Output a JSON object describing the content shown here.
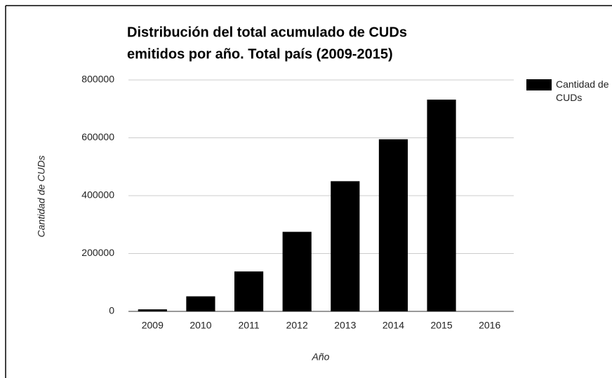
{
  "chart_data": {
    "type": "bar",
    "title": [
      "Distribución del total acumulado de CUDs",
      "emitidos por año. Total país (2009-2015)"
    ],
    "x_label": "Año",
    "y_label": "Cantidad de CUDs",
    "categories": [
      "2009",
      "2010",
      "2011",
      "2012",
      "2013",
      "2014",
      "2015",
      "2016"
    ],
    "series": [
      {
        "name": "Cantidad de CUDs",
        "color": "#000000",
        "values": [
          7000,
          52000,
          138000,
          275000,
          450000,
          595000,
          732000,
          null
        ]
      }
    ],
    "ylim": [
      0,
      800000
    ],
    "yticks": [
      0,
      200000,
      400000,
      600000,
      800000
    ],
    "grid": true,
    "legend": "right"
  }
}
